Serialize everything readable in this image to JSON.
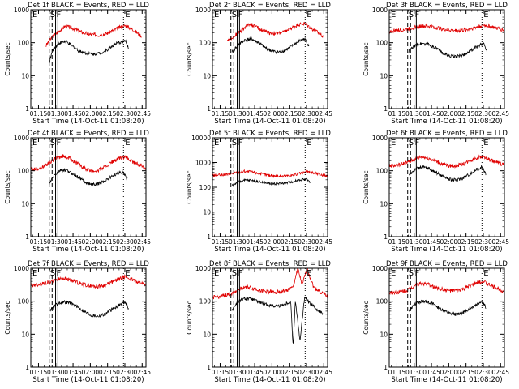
{
  "figure": {
    "colors": {
      "events": "#000000",
      "lld": "#e00000",
      "background": "#ffffff"
    },
    "xlabel": "Start Time (14-Oct-11 01:08:20)",
    "ylabel": "Counts/sec",
    "x_ticks": [
      "01:15",
      "01:30",
      "01:45",
      "02:00",
      "02:15",
      "02:30",
      "02:45"
    ],
    "y_ticks": [
      "1",
      "10",
      "100",
      "1000"
    ],
    "marker_letters": {
      "start": "E",
      "dash_a": "S",
      "solid_a": "F",
      "end": "E"
    }
  },
  "chart_data": [
    {
      "type": "line",
      "title": "Det 1f BLACK = Events, RED = LLD",
      "x_unit": "minutes after 01:08:20",
      "xlim": [
        0,
        100
      ],
      "ylim": [
        1,
        1000
      ],
      "log_y": true,
      "markers": {
        "dashed": [
          16,
          18.5
        ],
        "solid": [
          21.5,
          23.5
        ],
        "dotted": [
          80.5
        ]
      },
      "series": [
        {
          "color": "red",
          "data_start_min": 13,
          "data_end_min": 96,
          "x": [
            13,
            18,
            24,
            30,
            37,
            44,
            51,
            58,
            65,
            72,
            79,
            82,
            88,
            96
          ],
          "y": [
            80,
            140,
            220,
            320,
            270,
            210,
            180,
            170,
            185,
            240,
            310,
            330,
            260,
            160
          ]
        },
        {
          "color": "black",
          "data_start_min": 16,
          "data_end_min": 85,
          "x": [
            16,
            19,
            24,
            30,
            36,
            42,
            48,
            54,
            60,
            66,
            72,
            78,
            82,
            85
          ],
          "y": [
            25,
            60,
            95,
            110,
            80,
            55,
            48,
            45,
            48,
            60,
            85,
            105,
            115,
            65
          ]
        }
      ]
    },
    {
      "type": "line",
      "title": "Det 2f BLACK = Events, RED = LLD",
      "x_unit": "minutes after 01:08:20",
      "xlim": [
        0,
        100
      ],
      "ylim": [
        1,
        1000
      ],
      "log_y": true,
      "markers": {
        "dashed": [
          16,
          18.5
        ],
        "solid": [
          21.5,
          23.5
        ],
        "dotted": [
          80.5
        ]
      },
      "series": [
        {
          "color": "red",
          "data_start_min": 13,
          "data_end_min": 96,
          "x": [
            13,
            20,
            26,
            32,
            38,
            44,
            50,
            56,
            62,
            68,
            74,
            80,
            86,
            96
          ],
          "y": [
            120,
            170,
            250,
            380,
            300,
            230,
            200,
            190,
            210,
            270,
            350,
            380,
            270,
            160
          ]
        },
        {
          "color": "black",
          "data_start_min": 17,
          "data_end_min": 84,
          "x": [
            17,
            22,
            28,
            34,
            40,
            46,
            52,
            58,
            64,
            70,
            76,
            80,
            84
          ],
          "y": [
            50,
            85,
            120,
            130,
            100,
            70,
            55,
            52,
            60,
            85,
            115,
            130,
            80
          ]
        }
      ]
    },
    {
      "type": "line",
      "title": "Det 3f BLACK = Events, RED = LLD",
      "x_unit": "minutes after 01:08:20",
      "xlim": [
        0,
        100
      ],
      "ylim": [
        1,
        1000
      ],
      "log_y": true,
      "markers": {
        "dashed": [
          16,
          18.5
        ],
        "solid": [
          21.5,
          23.5
        ],
        "dotted": [
          80.5
        ]
      },
      "series": [
        {
          "color": "red",
          "data_start_min": 0,
          "data_end_min": 100,
          "x": [
            0,
            10,
            20,
            28,
            36,
            44,
            52,
            60,
            68,
            76,
            82,
            88,
            100
          ],
          "y": [
            220,
            240,
            280,
            320,
            310,
            270,
            240,
            230,
            250,
            300,
            340,
            310,
            240
          ]
        },
        {
          "color": "black",
          "data_start_min": 17,
          "data_end_min": 85,
          "x": [
            17,
            22,
            28,
            34,
            40,
            46,
            52,
            58,
            64,
            70,
            76,
            82,
            85
          ],
          "y": [
            55,
            80,
            95,
            90,
            70,
            50,
            40,
            38,
            42,
            55,
            75,
            95,
            55
          ]
        }
      ]
    },
    {
      "type": "line",
      "title": "Det 4f BLACK = Events, RED = LLD",
      "x_unit": "minutes after 01:08:20",
      "xlim": [
        0,
        100
      ],
      "ylim": [
        1,
        1000
      ],
      "log_y": true,
      "markers": {
        "dashed": [
          16,
          18.5
        ],
        "solid": [
          21.5,
          23.5
        ],
        "dotted": [
          80.5
        ]
      },
      "series": [
        {
          "color": "red",
          "data_start_min": 0,
          "data_end_min": 100,
          "x": [
            0,
            8,
            16,
            22,
            28,
            34,
            40,
            46,
            52,
            58,
            64,
            70,
            76,
            82,
            88,
            100
          ],
          "y": [
            110,
            120,
            170,
            240,
            280,
            240,
            170,
            120,
            100,
            100,
            130,
            180,
            230,
            260,
            190,
            120
          ]
        },
        {
          "color": "black",
          "data_start_min": 16,
          "data_end_min": 84,
          "x": [
            16,
            20,
            26,
            32,
            38,
            44,
            50,
            56,
            62,
            68,
            74,
            80,
            84
          ],
          "y": [
            40,
            70,
            105,
            100,
            75,
            55,
            40,
            38,
            45,
            60,
            80,
            95,
            55
          ]
        }
      ]
    },
    {
      "type": "line",
      "title": "Det 5f BLACK = Events, RED = LLD",
      "x_unit": "minutes after 01:08:20",
      "xlim": [
        0,
        100
      ],
      "ylim": [
        1,
        10000
      ],
      "log_y": true,
      "markers": {
        "dashed": [
          16,
          18.5
        ],
        "solid": [
          21.5,
          23.5
        ],
        "dotted": [
          80.5
        ]
      },
      "series": [
        {
          "color": "red",
          "data_start_min": 0,
          "data_end_min": 100,
          "x": [
            0,
            10,
            20,
            28,
            36,
            44,
            52,
            60,
            68,
            76,
            82,
            88,
            100
          ],
          "y": [
            300,
            320,
            380,
            450,
            400,
            330,
            290,
            280,
            300,
            360,
            420,
            380,
            280
          ]
        },
        {
          "color": "black",
          "data_start_min": 17,
          "data_end_min": 85,
          "x": [
            17,
            22,
            28,
            34,
            40,
            46,
            52,
            58,
            64,
            70,
            76,
            82,
            85
          ],
          "y": [
            120,
            160,
            190,
            190,
            170,
            150,
            140,
            140,
            150,
            170,
            200,
            210,
            150
          ]
        }
      ]
    },
    {
      "type": "line",
      "title": "Det 6f BLACK = Events, RED = LLD",
      "x_unit": "minutes after 01:08:20",
      "xlim": [
        0,
        100
      ],
      "ylim": [
        1,
        1000
      ],
      "log_y": true,
      "markers": {
        "dashed": [
          16,
          18.5
        ],
        "solid": [
          21.5,
          23.5
        ],
        "dotted": [
          80.5
        ]
      },
      "series": [
        {
          "color": "red",
          "data_start_min": 0,
          "data_end_min": 100,
          "x": [
            0,
            8,
            16,
            22,
            28,
            34,
            40,
            46,
            52,
            58,
            64,
            70,
            76,
            82,
            88,
            100
          ],
          "y": [
            140,
            150,
            180,
            220,
            270,
            240,
            200,
            160,
            140,
            140,
            160,
            200,
            250,
            270,
            210,
            150
          ]
        },
        {
          "color": "black",
          "data_start_min": 17,
          "data_end_min": 84,
          "x": [
            17,
            22,
            28,
            34,
            40,
            46,
            52,
            58,
            64,
            70,
            76,
            80,
            84
          ],
          "y": [
            70,
            110,
            130,
            120,
            90,
            70,
            55,
            52,
            60,
            80,
            110,
            130,
            80
          ]
        }
      ]
    },
    {
      "type": "line",
      "title": "Det 7f BLACK = Events, RED = LLD",
      "x_unit": "minutes after 01:08:20",
      "xlim": [
        0,
        100
      ],
      "ylim": [
        1,
        1000
      ],
      "log_y": true,
      "markers": {
        "dashed": [
          16,
          18.5
        ],
        "solid": [
          21.5,
          23.5
        ],
        "dotted": [
          80.5
        ]
      },
      "series": [
        {
          "color": "red",
          "data_start_min": 0,
          "data_end_min": 100,
          "x": [
            0,
            8,
            16,
            22,
            28,
            34,
            40,
            46,
            52,
            58,
            64,
            70,
            76,
            82,
            88,
            100
          ],
          "y": [
            300,
            330,
            380,
            450,
            500,
            450,
            380,
            320,
            290,
            280,
            300,
            370,
            470,
            550,
            450,
            320
          ]
        },
        {
          "color": "black",
          "data_start_min": 17,
          "data_end_min": 85,
          "x": [
            17,
            22,
            28,
            34,
            40,
            46,
            52,
            58,
            64,
            70,
            76,
            82,
            85
          ],
          "y": [
            55,
            80,
            95,
            90,
            70,
            50,
            38,
            35,
            40,
            55,
            75,
            95,
            60
          ]
        }
      ]
    },
    {
      "type": "line",
      "title": "Det 8f BLACK = Events, RED = LLD",
      "x_unit": "minutes after 01:08:20",
      "xlim": [
        0,
        100
      ],
      "ylim": [
        1,
        1000
      ],
      "log_y": true,
      "markers": {
        "dashed": [
          16,
          18.5
        ],
        "solid": [
          21.5,
          23.5
        ],
        "dotted": [
          80.5
        ]
      },
      "series": [
        {
          "color": "red",
          "data_start_min": 0,
          "data_end_min": 100,
          "x": [
            0,
            8,
            16,
            22,
            28,
            34,
            40,
            46,
            52,
            58,
            64,
            70,
            74,
            78,
            82,
            88,
            100
          ],
          "y": [
            130,
            140,
            170,
            220,
            270,
            250,
            220,
            200,
            190,
            190,
            210,
            260,
            1000,
            300,
            1000,
            260,
            140
          ]
        },
        {
          "color": "black",
          "data_start_min": 17,
          "data_end_min": 96,
          "x": [
            17,
            22,
            28,
            34,
            40,
            46,
            52,
            58,
            64,
            68,
            70,
            72,
            76,
            80,
            84,
            90,
            96
          ],
          "y": [
            55,
            95,
            120,
            115,
            95,
            80,
            72,
            72,
            85,
            100,
            4,
            110,
            6,
            130,
            90,
            60,
            40
          ]
        }
      ]
    },
    {
      "type": "line",
      "title": "Det 9f BLACK = Events, RED = LLD",
      "x_unit": "minutes after 01:08:20",
      "xlim": [
        0,
        100
      ],
      "ylim": [
        1,
        1000
      ],
      "log_y": true,
      "markers": {
        "dashed": [
          16,
          18.5
        ],
        "solid": [
          21.5,
          23.5
        ],
        "dotted": [
          80.5
        ]
      },
      "series": [
        {
          "color": "red",
          "data_start_min": 0,
          "data_end_min": 100,
          "x": [
            0,
            8,
            16,
            22,
            28,
            34,
            40,
            46,
            52,
            58,
            64,
            70,
            76,
            82,
            88,
            100
          ],
          "y": [
            180,
            190,
            220,
            300,
            350,
            320,
            260,
            230,
            210,
            210,
            230,
            290,
            360,
            390,
            300,
            200
          ]
        },
        {
          "color": "black",
          "data_start_min": 17,
          "data_end_min": 84,
          "x": [
            17,
            22,
            28,
            34,
            40,
            46,
            52,
            58,
            64,
            70,
            76,
            80,
            84
          ],
          "y": [
            50,
            80,
            100,
            95,
            75,
            55,
            42,
            40,
            45,
            60,
            80,
            100,
            65
          ]
        }
      ]
    }
  ]
}
